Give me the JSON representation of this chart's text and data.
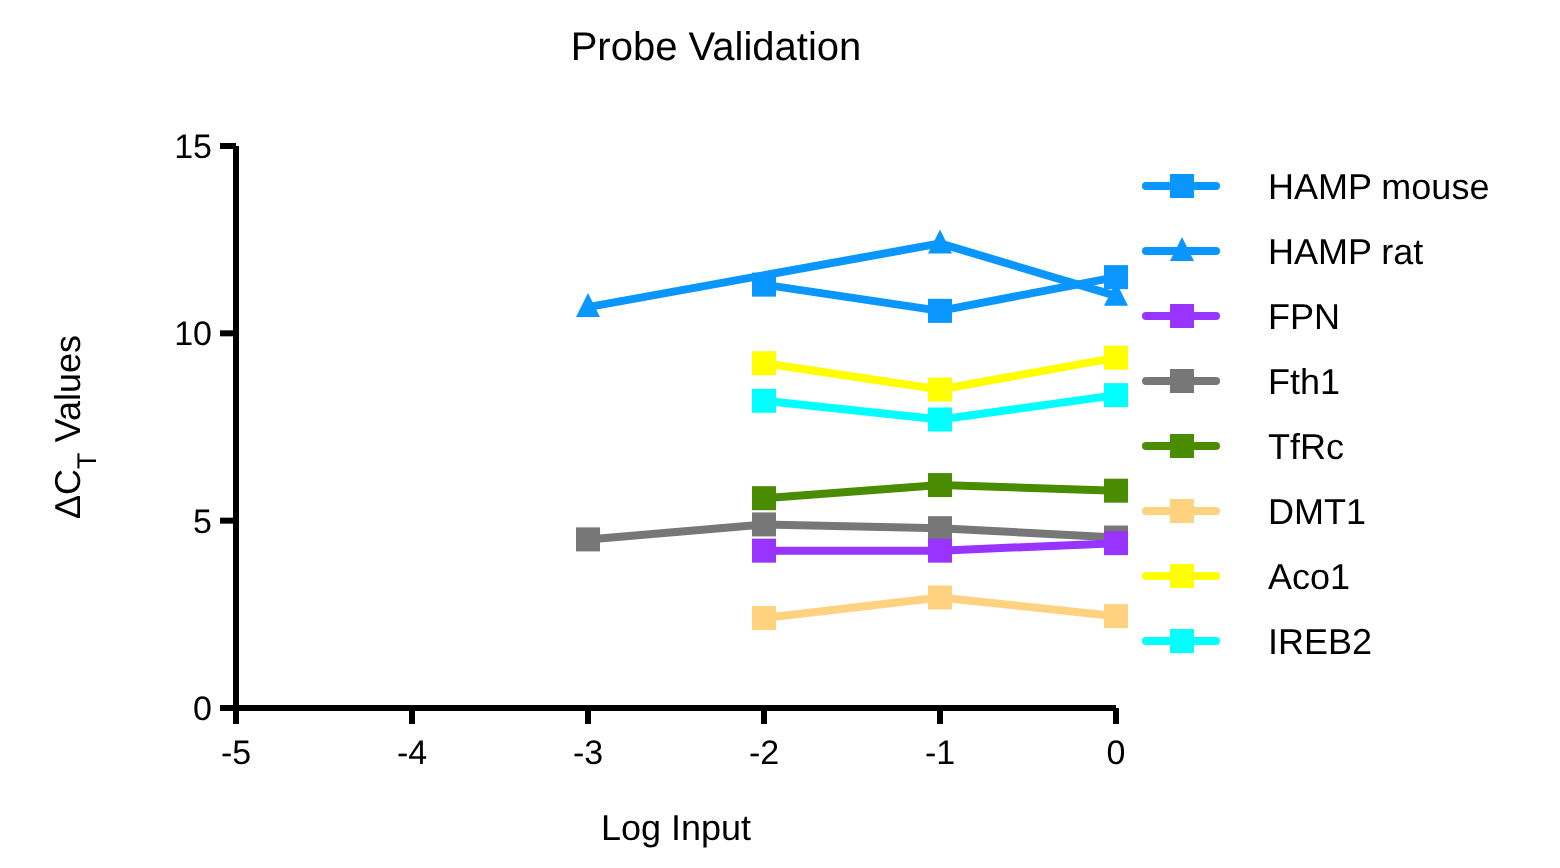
{
  "chart_data": {
    "type": "line",
    "title": "Probe Validation",
    "xlabel": "Log Input",
    "ylabel": "ΔC$_{T}$ Values",
    "xlim": [
      -5,
      0
    ],
    "xticks": [
      -5,
      -4,
      -3,
      -2,
      -1,
      0
    ],
    "ylim": [
      0,
      15
    ],
    "yticks": [
      0,
      5,
      10,
      15
    ],
    "grid": false,
    "legend": "right",
    "marker": "square",
    "series": [
      {
        "name": "HAMP mouse",
        "color": "#0a96ff",
        "x": [
          -2,
          -1,
          0
        ],
        "values": [
          11.3,
          10.6,
          11.5
        ]
      },
      {
        "name": "HAMP rat",
        "color": "#0a96ff",
        "marker": "triangle",
        "x": [
          -3,
          -1,
          0
        ],
        "values": [
          10.7,
          12.4,
          11.0
        ]
      },
      {
        "name": "FPN",
        "color": "#9933ff",
        "x": [
          -2,
          -1,
          0
        ],
        "values": [
          4.2,
          4.2,
          4.4
        ]
      },
      {
        "name": "Fth1",
        "color": "#777777",
        "x": [
          -3,
          -2,
          -1,
          0
        ],
        "values": [
          4.5,
          4.9,
          4.8,
          4.55
        ]
      },
      {
        "name": "TfRc",
        "color": "#4a8c00",
        "x": [
          -2,
          -1,
          0
        ],
        "values": [
          5.6,
          5.95,
          5.8
        ]
      },
      {
        "name": "DMT1",
        "color": "#ffd27f",
        "x": [
          -2,
          -1,
          0
        ],
        "values": [
          2.4,
          2.95,
          2.45
        ]
      },
      {
        "name": "Aco1",
        "color": "#ffff00",
        "x": [
          -2,
          -1,
          0
        ],
        "values": [
          9.2,
          8.5,
          9.35
        ]
      },
      {
        "name": "IREB2",
        "color": "#00ffff",
        "x": [
          -2,
          -1,
          0
        ],
        "values": [
          8.2,
          7.7,
          8.35
        ]
      }
    ]
  }
}
